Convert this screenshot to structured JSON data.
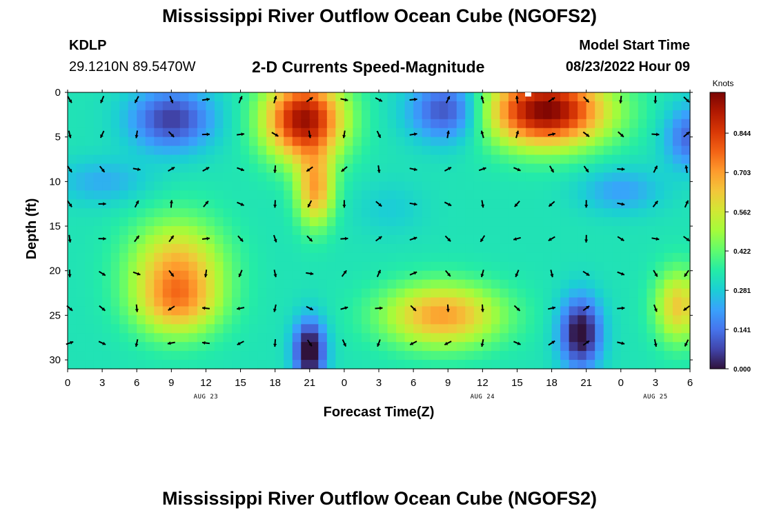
{
  "header": {
    "title": "Mississippi River Outflow Ocean Cube (NGOFS2)",
    "station_code": "KDLP",
    "station_coords": "29.1210N  89.5470W",
    "subtitle": "2-D Currents Speed-Magnitude",
    "model_start_label": "Model Start Time",
    "model_start_value": "08/23/2022 Hour 09"
  },
  "footer": {
    "title": "Mississippi River Outflow Ocean Cube (NGOFS2)"
  },
  "chart_data": {
    "type": "heatmap",
    "xlabel": "Forecast Time(Z)",
    "ylabel": "Depth (ft)",
    "x_tick_labels": [
      "0",
      "3",
      "6",
      "9",
      "12",
      "15",
      "18",
      "21",
      "0",
      "3",
      "6",
      "9",
      "12",
      "15",
      "18",
      "21",
      "0",
      "3",
      "6"
    ],
    "x_range_hours": [
      0,
      54
    ],
    "day_labels": [
      {
        "label": "AUG 23",
        "hour": 12
      },
      {
        "label": "AUG 24",
        "hour": 36
      },
      {
        "label": "AUG 25",
        "hour": 51
      }
    ],
    "y_ticks": [
      0,
      5,
      10,
      15,
      20,
      25,
      30
    ],
    "y_range": [
      0,
      31
    ],
    "y_inverted": true,
    "colorbar": {
      "label": "Knots",
      "ticks": [
        "0.000",
        "0.141",
        "0.281",
        "0.422",
        "0.562",
        "0.703",
        "0.844"
      ],
      "tick_values": [
        0.0,
        0.141,
        0.281,
        0.422,
        0.562,
        0.703,
        0.844
      ],
      "range": [
        0,
        0.99
      ],
      "colors": [
        "#30123b",
        "#4145ab",
        "#4675ed",
        "#39a2fc",
        "#1bcfd4",
        "#24eca6",
        "#61fc6c",
        "#a4fc3b",
        "#d1e834",
        "#f3c63a",
        "#fe9b2d",
        "#f36315",
        "#d93806",
        "#b11901",
        "#7a0402"
      ]
    },
    "speed_field": {
      "description_units": "knots",
      "base": 0.33,
      "blobs": [
        {
          "hour": 9,
          "depth": 3,
          "amp": -0.27,
          "sx": 3.6,
          "sy": 3.5
        },
        {
          "hour": 33,
          "depth": 2,
          "amp": -0.27,
          "sx": 3.3,
          "sy": 3.5
        },
        {
          "hour": 54,
          "depth": 5,
          "amp": -0.21,
          "sx": 2.2,
          "sy": 3.5
        },
        {
          "hour": 20.5,
          "depth": 3,
          "amp": 0.62,
          "sx": 3.4,
          "sy": 4.5
        },
        {
          "hour": 21.5,
          "depth": 11,
          "amp": 0.35,
          "sx": 1.6,
          "sy": 4.0
        },
        {
          "hour": 41.5,
          "depth": 2,
          "amp": 0.66,
          "sx": 5.2,
          "sy": 4.0
        },
        {
          "hour": 9.5,
          "depth": 20,
          "amp": 0.34,
          "sx": 4.0,
          "sy": 5.5
        },
        {
          "hour": 9.5,
          "depth": 24,
          "amp": 0.2,
          "sx": 3.5,
          "sy": 3.5
        },
        {
          "hour": 32.5,
          "depth": 25,
          "amp": 0.37,
          "sx": 5.0,
          "sy": 3.5
        },
        {
          "hour": 53,
          "depth": 24,
          "amp": 0.3,
          "sx": 2.0,
          "sy": 4.0
        },
        {
          "hour": 21,
          "depth": 29,
          "amp": -0.38,
          "sx": 1.4,
          "sy": 3.5
        },
        {
          "hour": 44.5,
          "depth": 27,
          "amp": -0.36,
          "sx": 1.8,
          "sy": 4.0
        },
        {
          "hour": 3,
          "depth": 10,
          "amp": -0.1,
          "sx": 4.0,
          "sy": 2.5
        },
        {
          "hour": 48,
          "depth": 11,
          "amp": -0.12,
          "sx": 3.5,
          "sy": 2.5
        },
        {
          "hour": 28,
          "depth": 13,
          "amp": -0.05,
          "sx": 3.0,
          "sy": 3.0
        }
      ]
    }
  }
}
